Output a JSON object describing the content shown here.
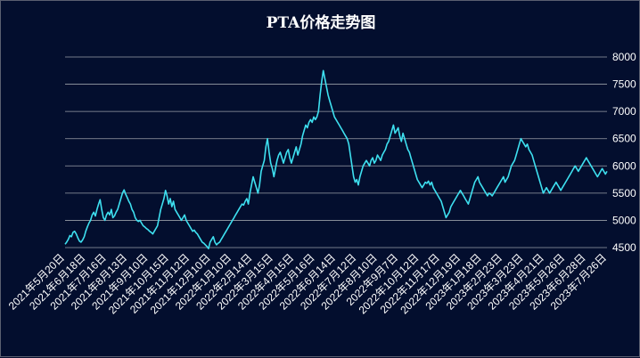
{
  "chart_data": {
    "type": "line",
    "title": "PTA价格走势图",
    "xlabel": "",
    "ylabel": "",
    "ylim": [
      4500,
      8000
    ],
    "yticks": [
      4500,
      5000,
      5500,
      6000,
      6500,
      7000,
      7500,
      8000
    ],
    "grid": "horizontal",
    "legend": "none",
    "line_color": "#3ee0f0",
    "background_color": "#030e2e",
    "x_tick_labels": [
      "2021年5月20日",
      "2021年6月18日",
      "2021年7月16日",
      "2021年8月13日",
      "2021年9月10日",
      "2021年10月15日",
      "2021年11月12日",
      "2021年12月10日",
      "2022年1月10日",
      "2022年2月14日",
      "2022年3月15日",
      "2022年4月15日",
      "2022年5月16日",
      "2022年6月14日",
      "2022年7月12日",
      "2022年8月10日",
      "2022年9月7日",
      "2022年10月12日",
      "2022年11月17日",
      "2022年12月19日",
      "2023年1月18日",
      "2023年2月23日",
      "2023年3月23日",
      "2023年4月21日",
      "2023年5月26日",
      "2023年6月28日",
      "2023年7月26日"
    ],
    "series": [
      {
        "values": [
          4560,
          4600,
          4650,
          4720,
          4700,
          4780,
          4800,
          4750,
          4680,
          4620,
          4600,
          4640,
          4700,
          4800,
          4880,
          4950,
          5000,
          5100,
          5150,
          5080,
          5200,
          5300,
          5380,
          5200,
          5050,
          5000,
          5100,
          5150,
          5100,
          5200,
          5050,
          5080,
          5150,
          5200,
          5300,
          5400,
          5500,
          5560,
          5480,
          5420,
          5350,
          5300,
          5200,
          5150,
          5050,
          5000,
          4980,
          5000,
          4950,
          4900,
          4880,
          4850,
          4830,
          4800,
          4780,
          4750,
          4800,
          4850,
          4900,
          5050,
          5200,
          5300,
          5400,
          5550,
          5450,
          5300,
          5400,
          5250,
          5350,
          5200,
          5150,
          5100,
          5050,
          5000,
          5050,
          5100,
          5000,
          4950,
          4900,
          4850,
          4800,
          4820,
          4780,
          4750,
          4700,
          4650,
          4600,
          4580,
          4550,
          4520,
          4480,
          4600,
          4650,
          4700,
          4600,
          4550,
          4580,
          4600,
          4650,
          4700,
          4750,
          4800,
          4850,
          4900,
          4950,
          5000,
          5050,
          5100,
          5150,
          5200,
          5250,
          5300,
          5280,
          5350,
          5400,
          5300,
          5500,
          5650,
          5800,
          5700,
          5600,
          5500,
          5650,
          5900,
          6000,
          6100,
          6350,
          6500,
          6250,
          6050,
          5950,
          5800,
          5950,
          6100,
          6200,
          6250,
          6150,
          6050,
          6150,
          6250,
          6300,
          6150,
          6050,
          6150,
          6250,
          6350,
          6200,
          6300,
          6400,
          6550,
          6650,
          6750,
          6700,
          6800,
          6850,
          6800,
          6900,
          6850,
          6900,
          7000,
          7300,
          7550,
          7750,
          7600,
          7450,
          7300,
          7200,
          7100,
          7000,
          6900,
          6850,
          6800,
          6750,
          6700,
          6650,
          6600,
          6550,
          6500,
          6400,
          6200,
          6000,
          5800,
          5700,
          5750,
          5650,
          5800,
          5900,
          6000,
          6050,
          6100,
          6050,
          6000,
          6100,
          6150,
          6050,
          6100,
          6200,
          6150,
          6100,
          6200,
          6250,
          6300,
          6400,
          6450,
          6550,
          6650,
          6750,
          6600,
          6650,
          6700,
          6550,
          6450,
          6600,
          6500,
          6400,
          6300,
          6250,
          6150,
          6050,
          5950,
          5850,
          5750,
          5700,
          5650,
          5600,
          5650,
          5700,
          5680,
          5720,
          5650,
          5700,
          5600,
          5550,
          5500,
          5450,
          5400,
          5350,
          5250,
          5150,
          5050,
          5100,
          5150,
          5250,
          5300,
          5350,
          5400,
          5450,
          5500,
          5550,
          5500,
          5450,
          5400,
          5350,
          5300,
          5400,
          5500,
          5600,
          5700,
          5750,
          5800,
          5700,
          5650,
          5600,
          5550,
          5500,
          5450,
          5500,
          5480,
          5450,
          5500,
          5550,
          5600,
          5650,
          5700,
          5750,
          5800,
          5700,
          5750,
          5800,
          5900,
          6000,
          6050,
          6100,
          6200,
          6300,
          6400,
          6500,
          6450,
          6400,
          6350,
          6400,
          6300,
          6250,
          6200,
          6100,
          6000,
          5900,
          5800,
          5700,
          5600,
          5500,
          5550,
          5600,
          5550,
          5500,
          5550,
          5600,
          5650,
          5700,
          5650,
          5600,
          5550,
          5600,
          5650,
          5700,
          5750,
          5800,
          5850,
          5900,
          5950,
          6000,
          5950,
          5900,
          5950,
          6000,
          6050,
          6100,
          6150,
          6100,
          6050,
          6000,
          5950,
          5900,
          5850,
          5800,
          5850,
          5900,
          5950,
          5900,
          5850,
          5900
        ]
      }
    ]
  }
}
